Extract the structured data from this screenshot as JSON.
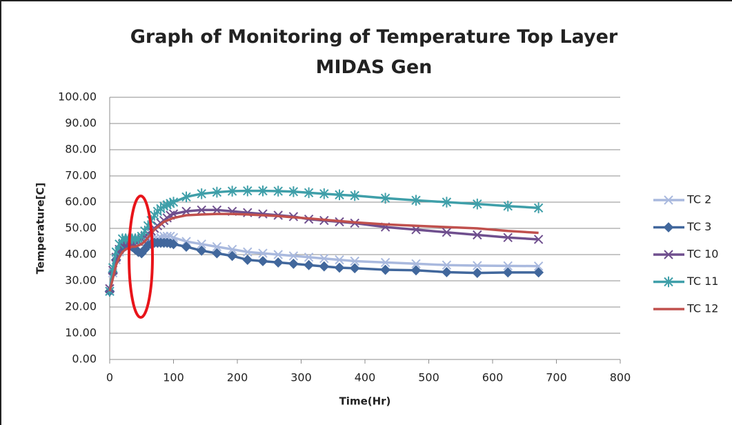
{
  "chart_data": {
    "type": "line",
    "title": "Graph of Monitoring of Temperature Top Layer MIDAS Gen",
    "x_label": "Time(Hr)",
    "y_label": "Temperature[C]",
    "x": [
      0,
      5,
      10,
      15,
      20,
      25,
      30,
      35,
      40,
      45,
      50,
      55,
      60,
      65,
      70,
      75,
      80,
      85,
      90,
      95,
      100,
      120,
      144,
      168,
      192,
      216,
      240,
      264,
      288,
      312,
      336,
      360,
      384,
      432,
      480,
      528,
      576,
      624,
      672
    ],
    "xlim": [
      0,
      800
    ],
    "xticks": [
      0,
      100,
      200,
      300,
      400,
      500,
      600,
      700,
      800
    ],
    "ylim": [
      0,
      100
    ],
    "yticks": [
      {
        "value": 0,
        "label": "0.00"
      },
      {
        "value": 10,
        "label": "10.00"
      },
      {
        "value": 20,
        "label": "20.00"
      },
      {
        "value": 30,
        "label": "30.00"
      },
      {
        "value": 40,
        "label": "40.00"
      },
      {
        "value": 50,
        "label": "50.00"
      },
      {
        "value": 60,
        "label": "60.00"
      },
      {
        "value": 70,
        "label": "70.00"
      },
      {
        "value": 80,
        "label": "80.00"
      },
      {
        "value": 90,
        "label": "90.00"
      },
      {
        "value": 100,
        "label": "100.00"
      }
    ],
    "grid": true,
    "legend": "right",
    "series": [
      {
        "name": "TC 2",
        "color": "#a9b9de",
        "marker": "x",
        "values": [
          26,
          33,
          38,
          41,
          43,
          44,
          45,
          45.5,
          46,
          46,
          46,
          46,
          46,
          46,
          46,
          46,
          46.5,
          47,
          47,
          47,
          46.5,
          45,
          44,
          43,
          42,
          41,
          40.5,
          40,
          39.5,
          39,
          38.5,
          38,
          37.5,
          37,
          36.5,
          36,
          35.8,
          35.7,
          35.6
        ]
      },
      {
        "name": "TC 3",
        "color": "#41679c",
        "marker": "diamond",
        "values": [
          26,
          33,
          38,
          41,
          43,
          44,
          44,
          43,
          42,
          41,
          40.5,
          42,
          43.5,
          44,
          44.5,
          44.5,
          44.5,
          44.5,
          44.5,
          44.3,
          44,
          43,
          41.5,
          40.5,
          39.5,
          38,
          37.5,
          37,
          36.5,
          36,
          35.5,
          35,
          34.8,
          34.2,
          34,
          33.3,
          33,
          33.2,
          33.2
        ]
      },
      {
        "name": "TC 10",
        "color": "#6f4f8e",
        "marker": "x",
        "values": [
          27,
          34,
          39,
          42,
          44,
          45,
          45,
          45,
          45,
          45,
          46,
          47,
          48,
          49,
          50,
          51,
          52,
          53,
          54,
          55,
          55.5,
          56.5,
          57,
          57,
          56.5,
          56,
          55.5,
          55,
          54.5,
          53.5,
          53,
          52.5,
          52,
          50.5,
          49.5,
          48.5,
          47.5,
          46.5,
          45.8
        ]
      },
      {
        "name": "TC 11",
        "color": "#3f9fa9",
        "marker": "star",
        "values": [
          26,
          35,
          41,
          44,
          46,
          46,
          46,
          46,
          46,
          46,
          47,
          49,
          51,
          53,
          55,
          56.5,
          57.5,
          58.5,
          59,
          59.5,
          60,
          62,
          63.2,
          63.8,
          64.2,
          64.3,
          64.3,
          64.2,
          64,
          63.6,
          63.2,
          62.8,
          62.5,
          61.5,
          60.7,
          60,
          59.3,
          58.5,
          57.8
        ]
      },
      {
        "name": "TC 12",
        "color": "#c0504d",
        "marker": "none",
        "values": [
          26,
          31,
          36,
          39,
          41,
          42,
          42.5,
          43,
          43,
          43.5,
          44,
          45,
          46.5,
          48,
          49.5,
          50.5,
          51.5,
          52.5,
          53,
          53.5,
          54,
          55,
          55.3,
          55.5,
          55.5,
          55.3,
          55,
          54.7,
          54.2,
          53.8,
          53.3,
          52.8,
          52.3,
          51.5,
          51,
          50.5,
          50,
          49,
          48.3
        ]
      }
    ]
  }
}
